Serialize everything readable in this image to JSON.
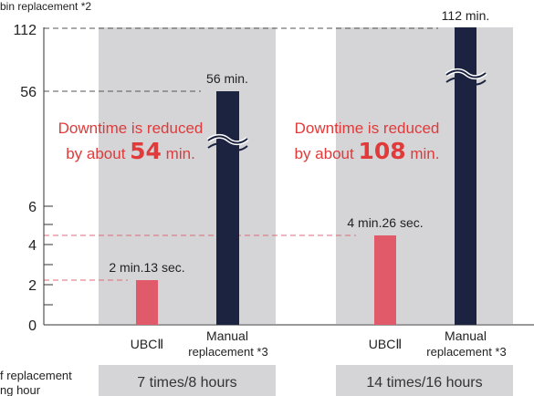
{
  "chart_data": {
    "type": "bar",
    "y_title_partial": "bin replacement *2",
    "y_axis_note": "Broken (non-linear) y-axis: ticks 0, 2, 4, 6, 56, 112",
    "y_ticks": [
      "0",
      "2",
      "4",
      "6",
      "56",
      "112"
    ],
    "groups": [
      {
        "label": "7 times/8 hours",
        "bars": [
          {
            "category": "UBCⅡ",
            "value_min": 2.22,
            "label": "2 min.13 sec.",
            "color": "#e05a6a"
          },
          {
            "category": "Manual",
            "category_line2": "replacement *3",
            "value_min": 56,
            "label": "56 min.",
            "color": "#1c2340"
          }
        ],
        "annotation": {
          "line1": "Downtime is reduced",
          "prefix": "by about ",
          "number": "54",
          "suffix": " min."
        }
      },
      {
        "label": "14 times/16 hours",
        "bars": [
          {
            "category": "UBCⅡ",
            "value_min": 4.43,
            "label": "4 min.26 sec.",
            "color": "#e05a6a"
          },
          {
            "category": "Manual",
            "category_line2": "replacement *3",
            "value_min": 112,
            "label": "112 min.",
            "color": "#1c2340"
          }
        ],
        "annotation": {
          "line1": "Downtime is reduced",
          "prefix": "by about ",
          "number": "108",
          "suffix": " min."
        }
      }
    ],
    "row_label_line1": "f replacement",
    "row_label_line2": "ng hour",
    "colors": {
      "panel": "#d5d5d7",
      "accent_text": "#e03a3a",
      "ubc_bar": "#e05a6a",
      "manual_bar": "#1c2340"
    }
  }
}
